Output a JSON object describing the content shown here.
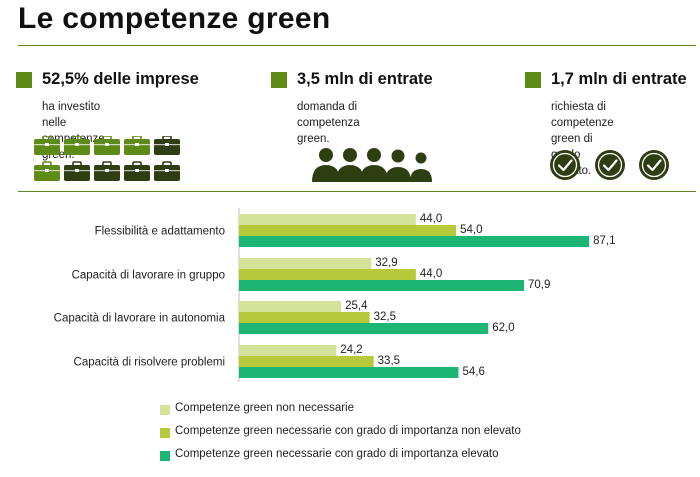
{
  "title": "Le competenze green",
  "stats": [
    {
      "head": "52,5% delle imprese",
      "desc_lines": [
        "ha investito nelle",
        "competenze green."
      ],
      "icon": "briefcase-icon"
    },
    {
      "head": "3,5 mln di entrate",
      "desc_lines": [
        "domanda di competenza",
        "green."
      ],
      "icon": "people-icon"
    },
    {
      "head": "1,7 mln di entrate",
      "desc_lines": [
        "richiesta di competenze",
        "green di grado elevato."
      ],
      "icon": "check-circle-icon"
    }
  ],
  "colors": {
    "accent": "#5e8a18",
    "series": [
      "#d4e29a",
      "#b5c93a",
      "#1db574"
    ]
  },
  "chart_data": {
    "type": "bar",
    "orientation": "horizontal",
    "categories": [
      "Flessibilità e adattamento",
      "Capacità di lavorare in gruppo",
      "Capacità di lavorare in autonomia",
      "Capacità di risolvere problemi"
    ],
    "series": [
      {
        "name": "Competenze green non necessarie",
        "values": [
          44.0,
          32.9,
          25.4,
          24.2
        ],
        "labels": [
          "44,0",
          "32,9",
          "25,4",
          "24,2"
        ]
      },
      {
        "name": "Competenze green necessarie con grado di importanza non elevato",
        "values": [
          54.0,
          44.0,
          32.5,
          33.5
        ],
        "labels": [
          "54,0",
          "44,0",
          "32,5",
          "33,5"
        ]
      },
      {
        "name": "Competenze green necessarie con grado di importanza elevato",
        "values": [
          87.1,
          70.9,
          62.0,
          54.6
        ],
        "labels": [
          "87,1",
          "70,9",
          "62,0",
          "54,6"
        ]
      }
    ],
    "xlim": [
      0,
      100
    ],
    "legend": "bottom"
  }
}
